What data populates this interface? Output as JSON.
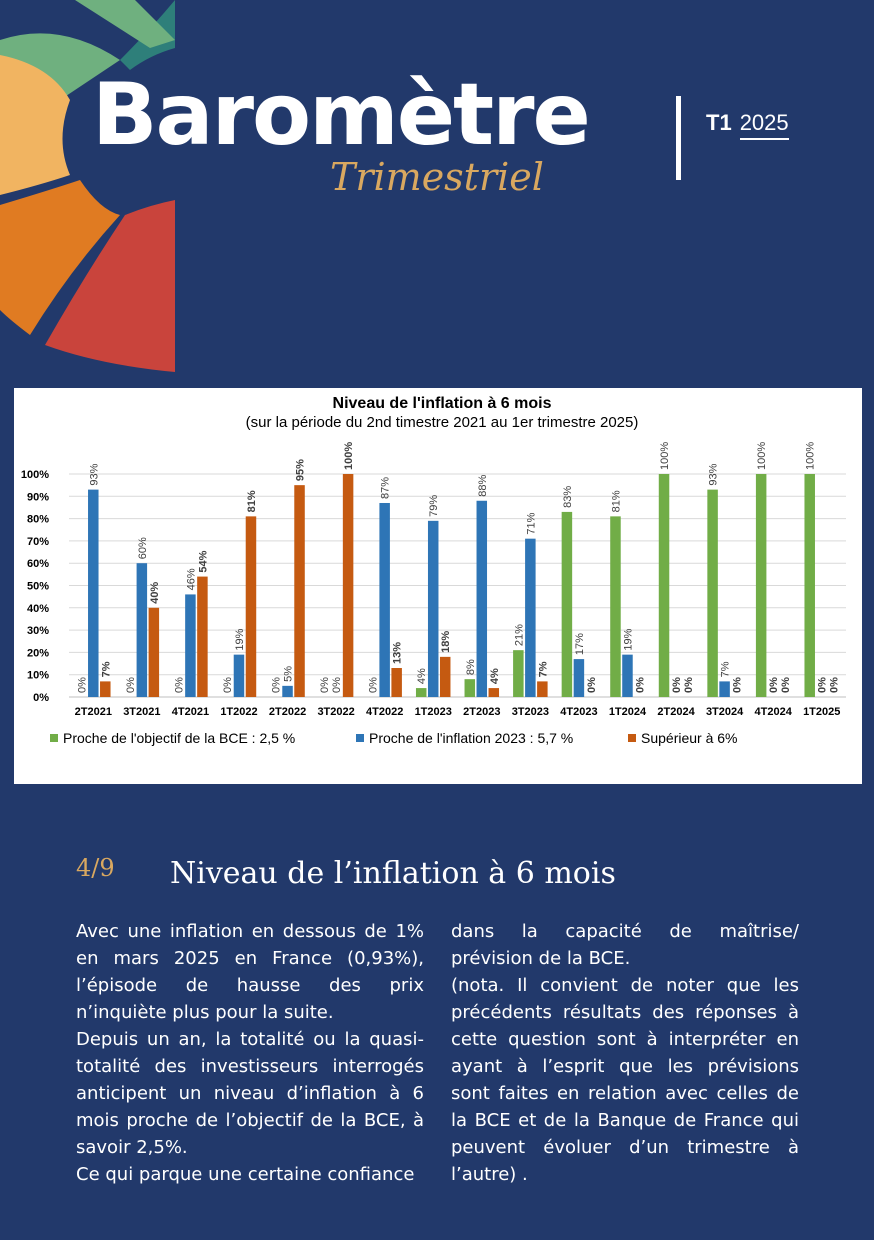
{
  "header": {
    "brand": "Baromètre",
    "subtitle": "Trimestriel",
    "quarter": "T1",
    "year": "2025"
  },
  "colors": {
    "background": "#22396b",
    "gold": "#d9a860",
    "green": "#71ad47",
    "blue": "#2e75b6",
    "orange": "#c55a11"
  },
  "chart_data": {
    "type": "bar",
    "title": "Niveau de l'inflation à 6 mois",
    "subtitle": "(sur la période du 2nd timestre 2021 au 1er trimestre 2025)",
    "categories": [
      "2T2021",
      "3T2021",
      "4T2021",
      "1T2022",
      "2T2022",
      "3T2022",
      "4T2022",
      "1T2023",
      "2T2023",
      "3T2023",
      "4T2023",
      "1T2024",
      "2T2024",
      "3T2024",
      "4T2024",
      "1T2025"
    ],
    "ylim": [
      0,
      100
    ],
    "yticks": [
      "0%",
      "10%",
      "20%",
      "30%",
      "40%",
      "50%",
      "60%",
      "70%",
      "80%",
      "90%",
      "100%"
    ],
    "grid": true,
    "legend_position": "bottom",
    "series": [
      {
        "name": "Proche de l'objectif de la BCE : 2,5 %",
        "color": "#71ad47",
        "values": [
          0,
          0,
          0,
          0,
          0,
          0,
          0,
          4,
          8,
          21,
          83,
          81,
          100,
          93,
          100,
          100
        ]
      },
      {
        "name": "Proche de l'inflation 2023 : 5,7 %",
        "color": "#2e75b6",
        "values": [
          93,
          60,
          46,
          19,
          5,
          0,
          87,
          79,
          88,
          71,
          17,
          19,
          0,
          7,
          0,
          0
        ]
      },
      {
        "name": "Supérieur à 6%",
        "color": "#c55a11",
        "values": [
          7,
          40,
          54,
          81,
          95,
          100,
          13,
          18,
          4,
          7,
          0,
          0,
          0,
          0,
          0,
          0
        ]
      }
    ]
  },
  "section": {
    "number": "4/9",
    "title": "Niveau de l’inflation à 6 mois"
  },
  "body": {
    "col1": [
      "Avec une inflation en dessous de 1% en mars 2025 en France (0,93%), l’épisode de hausse des prix n’inquiète plus pour la suite.",
      "Depuis un an, la totalité ou la quasi-totalité des investisseurs interrogés anticipent un niveau d’inflation à 6 mois proche de l’objectif de la BCE, à savoir 2,5%.",
      "Ce qui parque une certaine confiance"
    ],
    "col2": [
      "dans la capacité de maîtrise/ prévision de la BCE.",
      "(nota. Il convient de noter que les précédents résultats des réponses à cette question sont à interpréter en ayant à l’esprit que les prévisions sont faites en relation avec celles de la BCE et de la Banque de France qui peuvent évoluer d’un trimestre à l’autre) ."
    ]
  }
}
